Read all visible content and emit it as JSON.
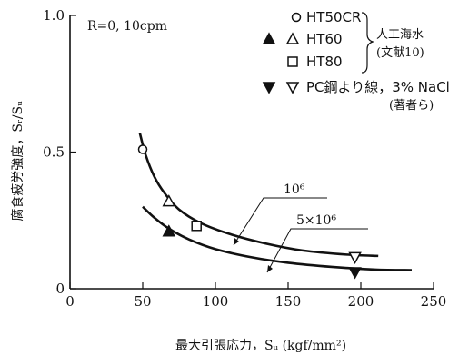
{
  "chart_data": {
    "type": "scatter",
    "title": "",
    "xlabel": "最大引張応力，S_u (kgf/mm²)",
    "ylabel": "腐食疲労強度，S_r/S_u",
    "xlim": [
      0,
      250
    ],
    "ylim": [
      0,
      1.0
    ],
    "x_ticks": [
      0,
      50,
      100,
      150,
      200,
      250
    ],
    "y_ticks": [
      0,
      0.5,
      1.0
    ],
    "x_tick_labels": [
      "0",
      "50",
      "100",
      "150",
      "200",
      "250"
    ],
    "y_tick_labels": [
      "0",
      "0.5",
      "1.0"
    ],
    "grid": false,
    "condition_text": "R=0,  10cpm",
    "series": [
      {
        "name": "HT50CR",
        "marker": "open-circle",
        "points": [
          [
            50,
            0.51
          ]
        ]
      },
      {
        "name": "HT60",
        "marker": "triangle",
        "points": [
          [
            68,
            0.32
          ],
          [
            68,
            0.21
          ]
        ]
      },
      {
        "name": "HT80",
        "marker": "open-square",
        "points": [
          [
            87,
            0.23
          ]
        ]
      },
      {
        "name": "PC鋼より線，3% NaCl",
        "marker": "inverted-triangle",
        "points": [
          [
            196,
            0.115
          ],
          [
            196,
            0.06
          ]
        ]
      }
    ],
    "legend_groups": [
      {
        "label": "人工海水",
        "sub": "(文献10)"
      },
      {
        "label": "",
        "sub": "(著者ら)"
      }
    ],
    "curves": [
      {
        "label": "10⁶",
        "points": [
          [
            48,
            0.57
          ],
          [
            52,
            0.49
          ],
          [
            58,
            0.41
          ],
          [
            65,
            0.35
          ],
          [
            75,
            0.29
          ],
          [
            90,
            0.24
          ],
          [
            110,
            0.2
          ],
          [
            135,
            0.165
          ],
          [
            160,
            0.14
          ],
          [
            190,
            0.125
          ],
          [
            212,
            0.12
          ]
        ]
      },
      {
        "label": "5×10⁶",
        "points": [
          [
            50,
            0.3
          ],
          [
            58,
            0.26
          ],
          [
            68,
            0.22
          ],
          [
            82,
            0.18
          ],
          [
            100,
            0.145
          ],
          [
            125,
            0.115
          ],
          [
            150,
            0.095
          ],
          [
            180,
            0.08
          ],
          [
            210,
            0.07
          ],
          [
            235,
            0.068
          ]
        ]
      }
    ]
  }
}
